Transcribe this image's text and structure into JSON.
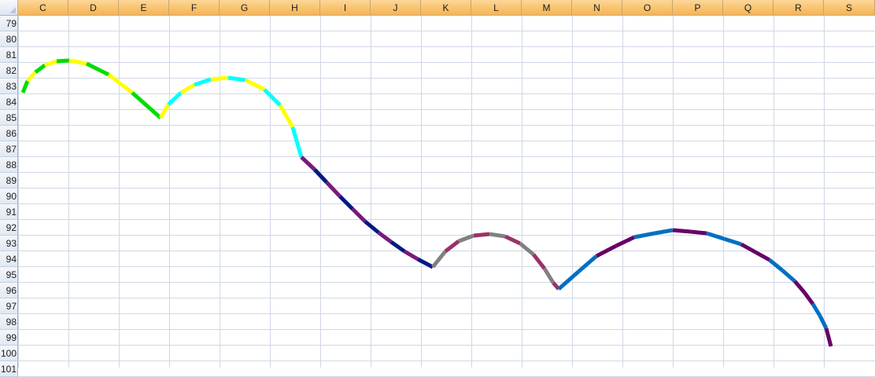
{
  "sheet": {
    "columns": [
      "C",
      "D",
      "E",
      "F",
      "G",
      "H",
      "I",
      "J",
      "K",
      "L",
      "M",
      "N",
      "O",
      "P",
      "Q",
      "R",
      "S"
    ],
    "rows": [
      "79",
      "80",
      "81",
      "82",
      "83",
      "84",
      "85",
      "86",
      "87",
      "88",
      "89",
      "90",
      "91",
      "92",
      "93",
      "94",
      "95",
      "96",
      "97",
      "98",
      "99",
      "100",
      "101"
    ],
    "selected_column": "all"
  },
  "drawing": {
    "description_colors": {
      "green": "#00dd00",
      "yellow": "#ffff00",
      "cyan": "#00ffff",
      "purple": "#7a1a7a",
      "navy": "#001a80",
      "gray": "#808080",
      "plum": "#993366",
      "blue": "#0070c0",
      "dark_purple": "#660066"
    }
  }
}
